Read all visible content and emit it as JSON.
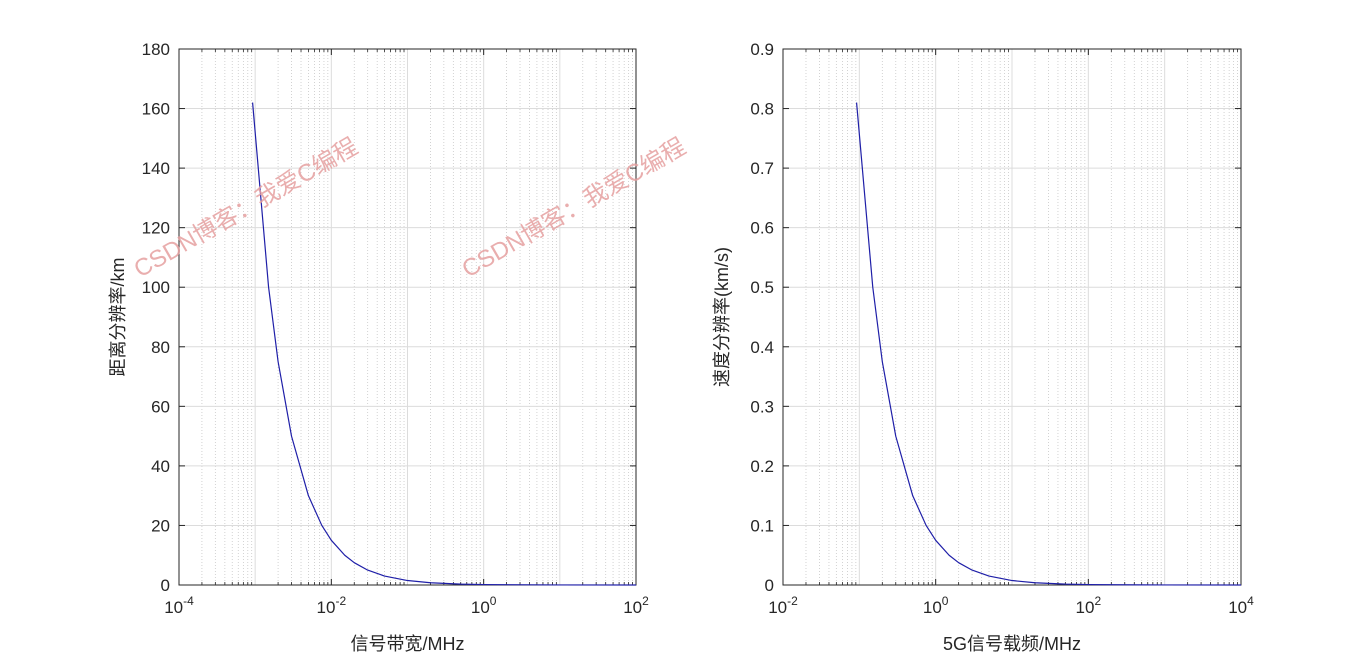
{
  "chart_data": [
    {
      "type": "line",
      "xscale": "log",
      "xlabel": "信号带宽/MHz",
      "ylabel": "距离分辨率/km",
      "xlim": [
        0.0001,
        100
      ],
      "ylim": [
        0,
        180
      ],
      "xticks": [
        {
          "base": "10",
          "exp": "-4",
          "value": 0.0001
        },
        {
          "base": "10",
          "exp": "-2",
          "value": 0.01
        },
        {
          "base": "10",
          "exp": "0",
          "value": 1
        },
        {
          "base": "10",
          "exp": "2",
          "value": 100
        }
      ],
      "yticks": [
        0,
        20,
        40,
        60,
        80,
        100,
        120,
        140,
        160,
        180
      ],
      "grid": true,
      "minor_grid": true,
      "series": [
        {
          "color": "#1f1fa8",
          "x": [
            0.000925,
            0.0015,
            0.002,
            0.003,
            0.005,
            0.0075,
            0.01,
            0.015,
            0.02,
            0.03,
            0.05,
            0.1,
            0.2,
            0.5,
            1,
            10,
            100
          ],
          "y": [
            162,
            100,
            75,
            50,
            30,
            20,
            15,
            10,
            7.5,
            5,
            3,
            1.5,
            0.75,
            0.3,
            0.15,
            0.015,
            0.0015
          ]
        }
      ]
    },
    {
      "type": "line",
      "xscale": "log",
      "xlabel": "5G信号载频/MHz",
      "ylabel": "速度分辨率(km/s)",
      "xlim": [
        0.01,
        10000
      ],
      "ylim": [
        0,
        0.9
      ],
      "xticks": [
        {
          "base": "10",
          "exp": "-2",
          "value": 0.01
        },
        {
          "base": "10",
          "exp": "0",
          "value": 1
        },
        {
          "base": "10",
          "exp": "2",
          "value": 100
        },
        {
          "base": "10",
          "exp": "4",
          "value": 10000
        }
      ],
      "yticks": [
        0,
        0.1,
        0.2,
        0.3,
        0.4,
        0.5,
        0.6,
        0.7,
        0.8,
        0.9
      ],
      "ytick_labels": [
        "0",
        "0.1",
        "0.2",
        "0.3",
        "0.4",
        "0.5",
        "0.6",
        "0.7",
        "0.8",
        "0.9"
      ],
      "grid": true,
      "minor_grid": true,
      "series": [
        {
          "color": "#1f1fa8",
          "x": [
            0.092,
            0.15,
            0.2,
            0.3,
            0.5,
            0.75,
            1,
            1.5,
            2,
            3,
            5,
            10,
            20,
            50,
            100,
            1000,
            10000
          ],
          "y": [
            0.81,
            0.5,
            0.375,
            0.25,
            0.15,
            0.1,
            0.075,
            0.05,
            0.0375,
            0.025,
            0.015,
            0.0075,
            0.00375,
            0.0015,
            0.00075,
            7.5e-05,
            7.5e-06
          ]
        }
      ]
    }
  ],
  "watermarks": [
    "CSDN博客：我爱C编程",
    "CSDN博客：我爱C编程"
  ]
}
